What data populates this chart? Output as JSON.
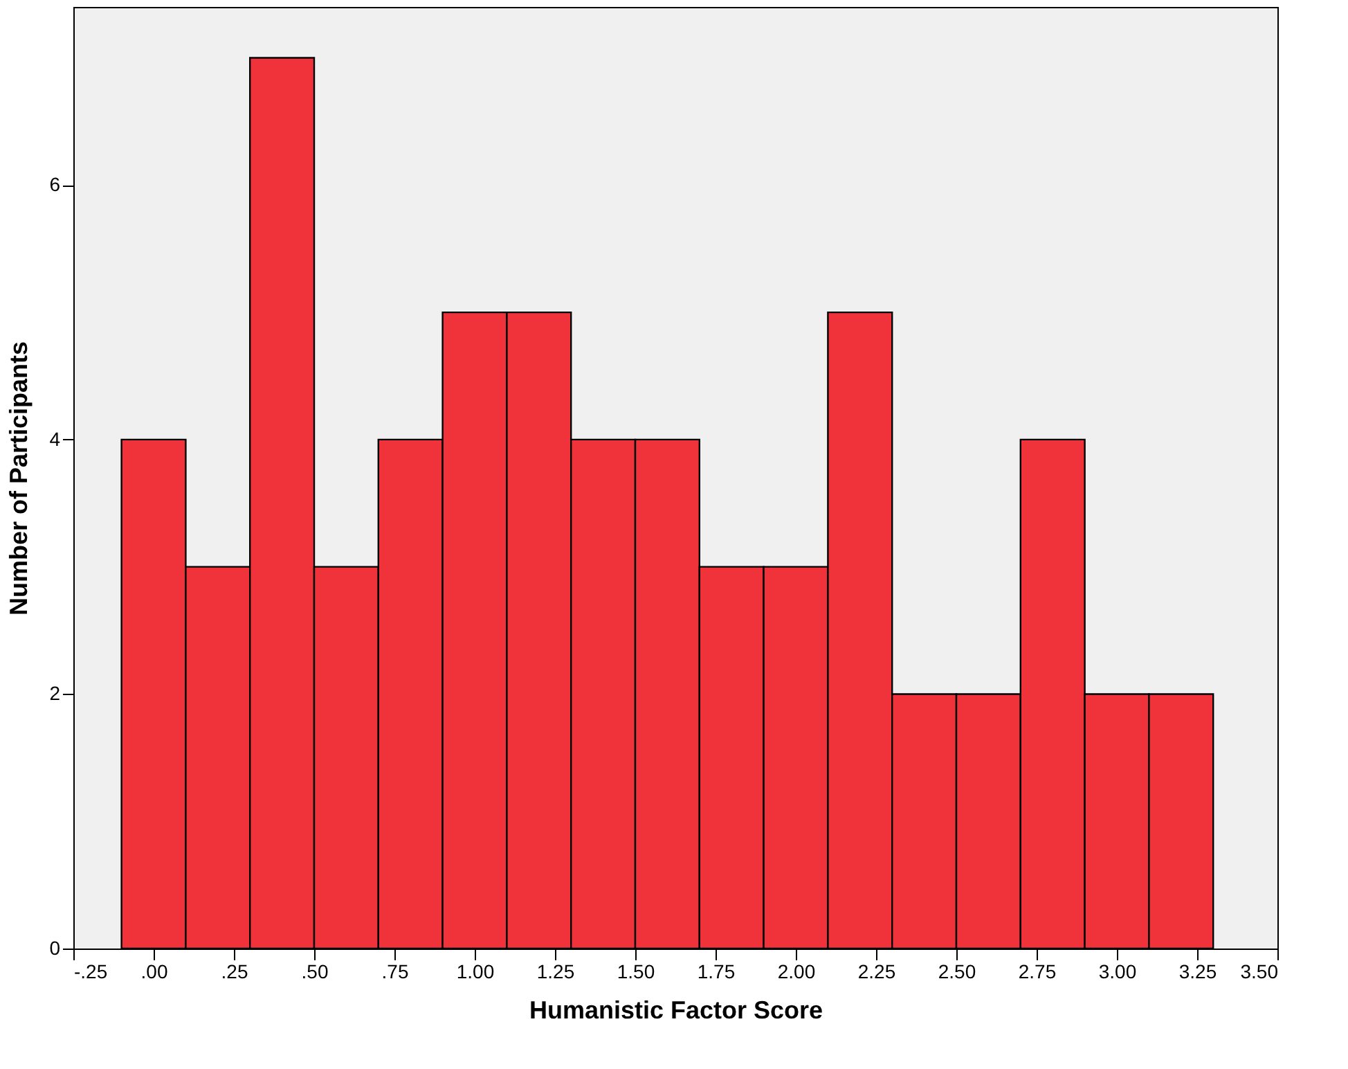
{
  "chart_data": {
    "type": "histogram",
    "xlabel": "Humanistic Factor Score",
    "ylabel": "Number of Participants",
    "bins": [
      -0.1,
      0.1,
      0.3,
      0.5,
      0.7,
      0.9,
      1.1,
      1.3,
      1.5,
      1.7,
      1.9,
      2.1,
      2.3,
      2.5,
      2.7,
      2.9,
      3.1,
      3.3
    ],
    "values": [
      4,
      3,
      7,
      3,
      4,
      5,
      5,
      4,
      4,
      3,
      3,
      5,
      2,
      2,
      4,
      2,
      2
    ],
    "color": "#f0333a",
    "xlim": [
      -0.25,
      3.5
    ],
    "xticks": [
      {
        "value": -0.25,
        "label": "-.25"
      },
      {
        "value": 0,
        "label": ".00"
      },
      {
        "value": 0.25,
        "label": ".25"
      },
      {
        "value": 0.5,
        "label": ".50"
      },
      {
        "value": 0.75,
        "label": ".75"
      },
      {
        "value": 1,
        "label": "1.00"
      },
      {
        "value": 1.25,
        "label": "1.25"
      },
      {
        "value": 1.5,
        "label": "1.50"
      },
      {
        "value": 1.75,
        "label": "1.75"
      },
      {
        "value": 2,
        "label": "2.00"
      },
      {
        "value": 2.25,
        "label": "2.25"
      },
      {
        "value": 2.5,
        "label": "2.50"
      },
      {
        "value": 2.75,
        "label": "2.75"
      },
      {
        "value": 3,
        "label": "3.00"
      },
      {
        "value": 3.25,
        "label": "3.25"
      },
      {
        "value": 3.5,
        "label": "3.50"
      }
    ],
    "ylim": [
      0,
      7.4
    ],
    "yticks": [
      0,
      2,
      4,
      6
    ],
    "grid": false
  }
}
